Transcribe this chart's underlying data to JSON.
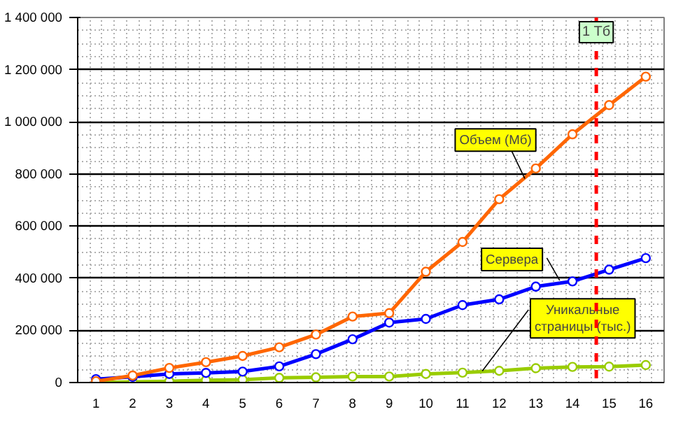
{
  "chart_data": {
    "type": "line",
    "x": [
      1,
      2,
      3,
      4,
      5,
      6,
      7,
      8,
      9,
      10,
      11,
      12,
      13,
      14,
      15,
      16
    ],
    "xlim": [
      0.5,
      16.5
    ],
    "xticks": [
      1,
      2,
      3,
      4,
      5,
      6,
      7,
      8,
      9,
      10,
      11,
      12,
      13,
      14,
      15,
      16
    ],
    "ylim": [
      0,
      1400000
    ],
    "yticks": [
      {
        "value": 0,
        "label": "0"
      },
      {
        "value": 200000,
        "label": "200 000"
      },
      {
        "value": 400000,
        "label": "400 000"
      },
      {
        "value": 600000,
        "label": "600 000"
      },
      {
        "value": 800000,
        "label": "800 000"
      },
      {
        "value": 1000000,
        "label": "1 000 000"
      },
      {
        "value": 1200000,
        "label": "1 200 000"
      },
      {
        "value": 1400000,
        "label": "1 400 000"
      }
    ],
    "series": [
      {
        "name": "Объем (Мб)",
        "color": "#ff6600",
        "values": [
          5000,
          27000,
          56000,
          78000,
          102000,
          135000,
          184000,
          253000,
          266000,
          425000,
          539000,
          703000,
          821000,
          952000,
          1064000,
          1173000
        ]
      },
      {
        "name": "Сервера",
        "color": "#0000ff",
        "values": [
          13000,
          22000,
          33000,
          37000,
          42000,
          62000,
          109000,
          166000,
          230000,
          244000,
          297000,
          319000,
          368000,
          388000,
          433000,
          477000
        ]
      },
      {
        "name": "Уникальные страницы (тыс.)",
        "color": "#99cc00",
        "values": [
          0,
          3000,
          5000,
          9000,
          11000,
          18000,
          20000,
          23000,
          23000,
          33000,
          38000,
          45000,
          55000,
          60000,
          61000,
          67000
        ]
      }
    ],
    "ref_lines": [
      {
        "axis": "x",
        "value": 14.65,
        "label": "1 Тб",
        "color": "#ff0000",
        "line_style": "dashed"
      }
    ],
    "grid": true,
    "marker": "circle",
    "line_style": "solid"
  }
}
